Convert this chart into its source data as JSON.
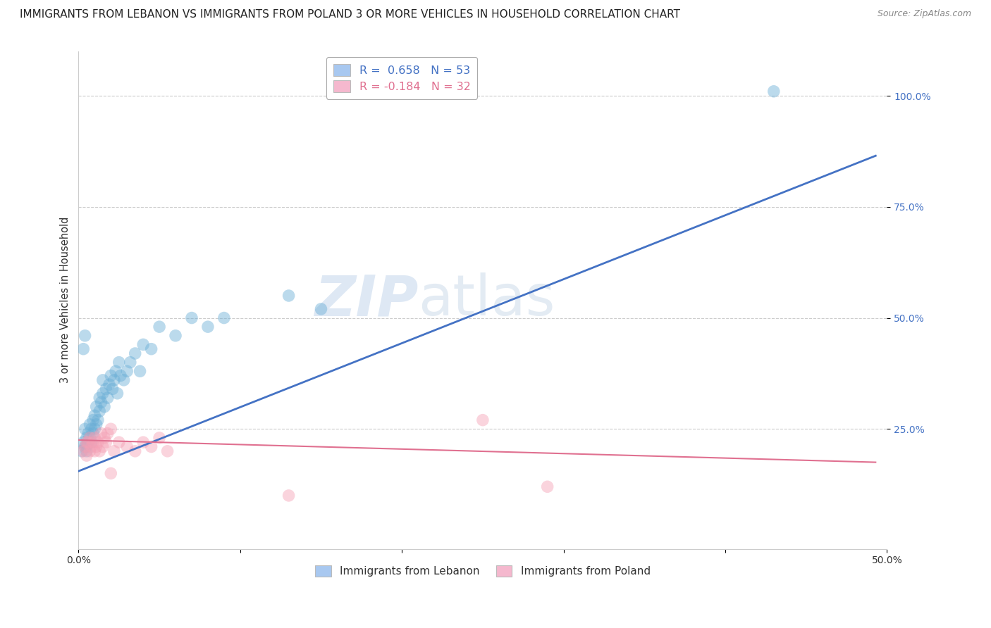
{
  "title": "IMMIGRANTS FROM LEBANON VS IMMIGRANTS FROM POLAND 3 OR MORE VEHICLES IN HOUSEHOLD CORRELATION CHART",
  "source": "Source: ZipAtlas.com",
  "ylabel": "3 or more Vehicles in Household",
  "xlim": [
    0.0,
    0.5
  ],
  "ylim": [
    -0.02,
    1.1
  ],
  "xtick_labels": [
    "0.0%",
    "",
    "",
    "",
    "",
    "50.0%"
  ],
  "xtick_vals": [
    0.0,
    0.1,
    0.2,
    0.3,
    0.4,
    0.5
  ],
  "ytick_labels": [
    "25.0%",
    "50.0%",
    "75.0%",
    "100.0%"
  ],
  "ytick_vals": [
    0.25,
    0.5,
    0.75,
    1.0
  ],
  "legend_labels": [
    "R =  0.658   N = 53",
    "R = -0.184   N = 32"
  ],
  "legend_colors": [
    "#a8c8f0",
    "#f5b8ce"
  ],
  "watermark_zip": "ZIP",
  "watermark_atlas": "atlas",
  "blue_color": "#6aaed6",
  "pink_color": "#f4a0b5",
  "blue_line_color": "#4472c4",
  "pink_line_color": "#e07090",
  "legend_r_colors": [
    "#4472c4",
    "#e07090"
  ],
  "lebanon_scatter": [
    [
      0.002,
      0.2
    ],
    [
      0.003,
      0.22
    ],
    [
      0.004,
      0.21
    ],
    [
      0.004,
      0.25
    ],
    [
      0.005,
      0.23
    ],
    [
      0.005,
      0.2
    ],
    [
      0.006,
      0.24
    ],
    [
      0.006,
      0.22
    ],
    [
      0.007,
      0.26
    ],
    [
      0.007,
      0.23
    ],
    [
      0.008,
      0.22
    ],
    [
      0.008,
      0.25
    ],
    [
      0.009,
      0.24
    ],
    [
      0.009,
      0.27
    ],
    [
      0.01,
      0.25
    ],
    [
      0.01,
      0.28
    ],
    [
      0.011,
      0.26
    ],
    [
      0.011,
      0.3
    ],
    [
      0.012,
      0.27
    ],
    [
      0.013,
      0.32
    ],
    [
      0.013,
      0.29
    ],
    [
      0.014,
      0.31
    ],
    [
      0.015,
      0.33
    ],
    [
      0.015,
      0.36
    ],
    [
      0.016,
      0.3
    ],
    [
      0.017,
      0.34
    ],
    [
      0.018,
      0.32
    ],
    [
      0.019,
      0.35
    ],
    [
      0.02,
      0.37
    ],
    [
      0.021,
      0.34
    ],
    [
      0.022,
      0.36
    ],
    [
      0.023,
      0.38
    ],
    [
      0.024,
      0.33
    ],
    [
      0.025,
      0.4
    ],
    [
      0.026,
      0.37
    ],
    [
      0.028,
      0.36
    ],
    [
      0.03,
      0.38
    ],
    [
      0.032,
      0.4
    ],
    [
      0.035,
      0.42
    ],
    [
      0.038,
      0.38
    ],
    [
      0.04,
      0.44
    ],
    [
      0.045,
      0.43
    ],
    [
      0.05,
      0.48
    ],
    [
      0.06,
      0.46
    ],
    [
      0.07,
      0.5
    ],
    [
      0.08,
      0.48
    ],
    [
      0.09,
      0.5
    ],
    [
      0.003,
      0.43
    ],
    [
      0.004,
      0.46
    ],
    [
      0.13,
      0.55
    ],
    [
      0.15,
      0.52
    ],
    [
      0.43,
      1.01
    ],
    [
      0.005,
      0.21
    ]
  ],
  "poland_scatter": [
    [
      0.003,
      0.2
    ],
    [
      0.004,
      0.21
    ],
    [
      0.005,
      0.19
    ],
    [
      0.006,
      0.22
    ],
    [
      0.007,
      0.23
    ],
    [
      0.007,
      0.2
    ],
    [
      0.008,
      0.21
    ],
    [
      0.009,
      0.22
    ],
    [
      0.01,
      0.2
    ],
    [
      0.01,
      0.23
    ],
    [
      0.011,
      0.21
    ],
    [
      0.012,
      0.22
    ],
    [
      0.013,
      0.2
    ],
    [
      0.014,
      0.24
    ],
    [
      0.015,
      0.21
    ],
    [
      0.016,
      0.23
    ],
    [
      0.017,
      0.22
    ],
    [
      0.018,
      0.24
    ],
    [
      0.02,
      0.25
    ],
    [
      0.022,
      0.2
    ],
    [
      0.025,
      0.22
    ],
    [
      0.03,
      0.21
    ],
    [
      0.035,
      0.2
    ],
    [
      0.04,
      0.22
    ],
    [
      0.045,
      0.21
    ],
    [
      0.05,
      0.23
    ],
    [
      0.055,
      0.2
    ],
    [
      0.25,
      0.27
    ],
    [
      0.13,
      0.1
    ],
    [
      0.02,
      0.15
    ],
    [
      0.29,
      0.12
    ],
    [
      0.005,
      0.22
    ]
  ],
  "blue_line_x": [
    0.0,
    0.493
  ],
  "blue_line_y": [
    0.155,
    0.865
  ],
  "pink_line_x": [
    0.0,
    0.493
  ],
  "pink_line_y": [
    0.225,
    0.175
  ],
  "grid_color": "#cccccc",
  "background_color": "#ffffff",
  "title_fontsize": 11,
  "axis_label_fontsize": 10.5,
  "tick_fontsize": 10
}
